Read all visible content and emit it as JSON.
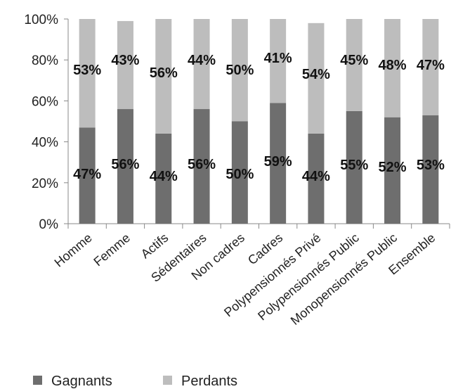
{
  "chart_data": {
    "type": "bar",
    "stacked": true,
    "categories": [
      "Homme",
      "Femme",
      "Actifs",
      "Sédentaires",
      "Non cadres",
      "Cadres",
      "Polypensionnés Privé",
      "Polypensionnés Public",
      "Monopensionnés Public",
      "Ensemble"
    ],
    "series": [
      {
        "name": "Gagnants",
        "color": "#6e6e6e",
        "values": [
          47,
          56,
          44,
          56,
          50,
          59,
          44,
          55,
          52,
          53
        ],
        "labels": [
          "47%",
          "56%",
          "44%",
          "56%",
          "50%",
          "59%",
          "44%",
          "55%",
          "52%",
          "53%"
        ]
      },
      {
        "name": "Perdants",
        "color": "#bdbdbd",
        "values": [
          53,
          43,
          56,
          44,
          50,
          41,
          54,
          45,
          48,
          47
        ],
        "labels": [
          "53%",
          "43%",
          "56%",
          "44%",
          "50%",
          "41%",
          "54%",
          "45%",
          "48%",
          "47%"
        ]
      }
    ],
    "ylim": [
      0,
      100
    ],
    "yticks": [
      "0%",
      "20%",
      "40%",
      "60%",
      "80%",
      "100%"
    ],
    "legend_position": "bottom",
    "grid": false
  }
}
